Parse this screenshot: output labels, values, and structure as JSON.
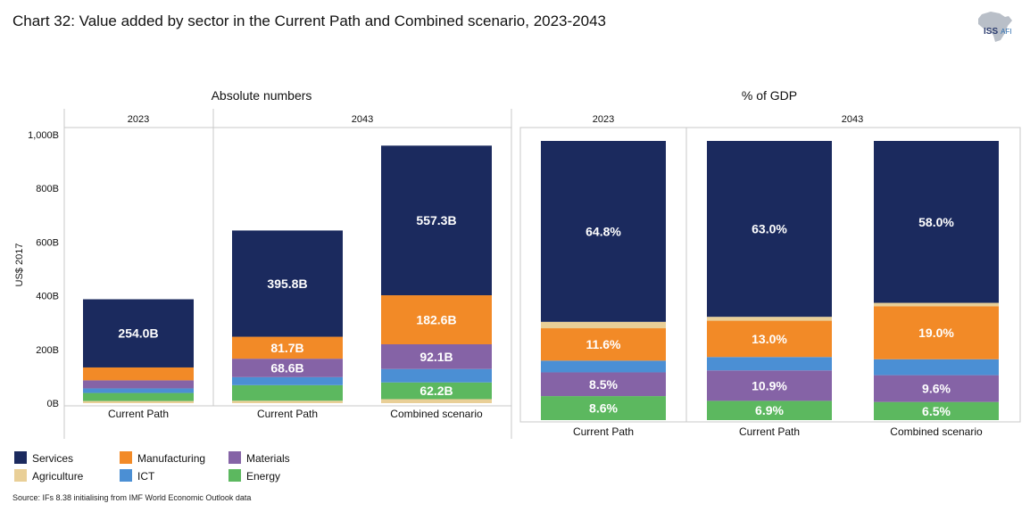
{
  "title": "Chart 32: Value added by sector in the Current Path and Combined scenario, 2023-2043",
  "logo": {
    "main": "ISS",
    "sub": "AFI"
  },
  "source": "Source: IFs 8.38 initialising from IMF World Economic Outlook data",
  "colors": {
    "Services": "#1b2a5e",
    "Manufacturing": "#f28a27",
    "Materials": "#8563a6",
    "Agriculture": "#e9cf97",
    "ICT": "#4b8fd4",
    "Energy": "#5cb85f"
  },
  "legend": [
    {
      "name": "Services",
      "color": "#1b2a5e"
    },
    {
      "name": "Manufacturing",
      "color": "#f28a27"
    },
    {
      "name": "Materials",
      "color": "#8563a6"
    },
    {
      "name": "Agriculture",
      "color": "#e9cf97"
    },
    {
      "name": "ICT",
      "color": "#4b8fd4"
    },
    {
      "name": "Energy",
      "color": "#5cb85f"
    }
  ],
  "chart_data": [
    {
      "type": "bar",
      "stacked": true,
      "title": "Absolute numbers",
      "ylabel": "US$ 2017",
      "ylim": [
        0,
        1000
      ],
      "yticks": [
        0,
        200,
        400,
        600,
        800,
        1000
      ],
      "ytick_labels": [
        "0B",
        "200B",
        "400B",
        "600B",
        "800B",
        "1,000B"
      ],
      "groups": [
        "2023",
        "2043"
      ],
      "categories": [
        {
          "label": "Current Path",
          "group": "2023"
        },
        {
          "label": "Current Path",
          "group": "2043"
        },
        {
          "label": "Combined scenario",
          "group": "2043"
        }
      ],
      "series": [
        {
          "name": "Agriculture",
          "values": [
            8,
            9,
            15
          ]
        },
        {
          "name": "Energy",
          "values": [
            30,
            58,
            62.2
          ]
        },
        {
          "name": "ICT",
          "values": [
            17,
            30,
            50
          ]
        },
        {
          "name": "Materials",
          "values": [
            30,
            68.6,
            92.1
          ]
        },
        {
          "name": "Manufacturing",
          "values": [
            48,
            81.7,
            182.6
          ]
        },
        {
          "name": "Services",
          "values": [
            254.0,
            395.8,
            557.3
          ]
        }
      ],
      "data_labels": [
        [
          null,
          null,
          null,
          null,
          null,
          "254.0B"
        ],
        [
          null,
          null,
          null,
          "68.6B",
          "81.7B",
          "395.8B"
        ],
        [
          null,
          "62.2B",
          null,
          "92.1B",
          "182.6B",
          "557.3B"
        ]
      ]
    },
    {
      "type": "bar",
      "stacked": true,
      "title": "% of GDP",
      "ylim": [
        0,
        100
      ],
      "groups": [
        "2023",
        "2043"
      ],
      "categories": [
        {
          "label": "Current Path",
          "group": "2023"
        },
        {
          "label": "Current Path",
          "group": "2043"
        },
        {
          "label": "Combined scenario",
          "group": "2043"
        }
      ],
      "series": [
        {
          "name": "Energy",
          "values": [
            8.6,
            6.9,
            6.5
          ]
        },
        {
          "name": "Materials",
          "values": [
            8.5,
            10.9,
            9.6
          ]
        },
        {
          "name": "ICT",
          "values": [
            4.2,
            4.8,
            5.7
          ]
        },
        {
          "name": "Manufacturing",
          "values": [
            11.6,
            13.0,
            19.0
          ]
        },
        {
          "name": "Agriculture",
          "values": [
            2.3,
            1.4,
            1.2
          ]
        },
        {
          "name": "Services",
          "values": [
            64.8,
            63.0,
            58.0
          ]
        }
      ],
      "data_labels": [
        [
          "8.6%",
          "8.5%",
          null,
          "11.6%",
          null,
          "64.8%"
        ],
        [
          "6.9%",
          "10.9%",
          null,
          "13.0%",
          null,
          "63.0%"
        ],
        [
          "6.5%",
          "9.6%",
          null,
          "19.0%",
          null,
          "58.0%"
        ]
      ]
    }
  ]
}
